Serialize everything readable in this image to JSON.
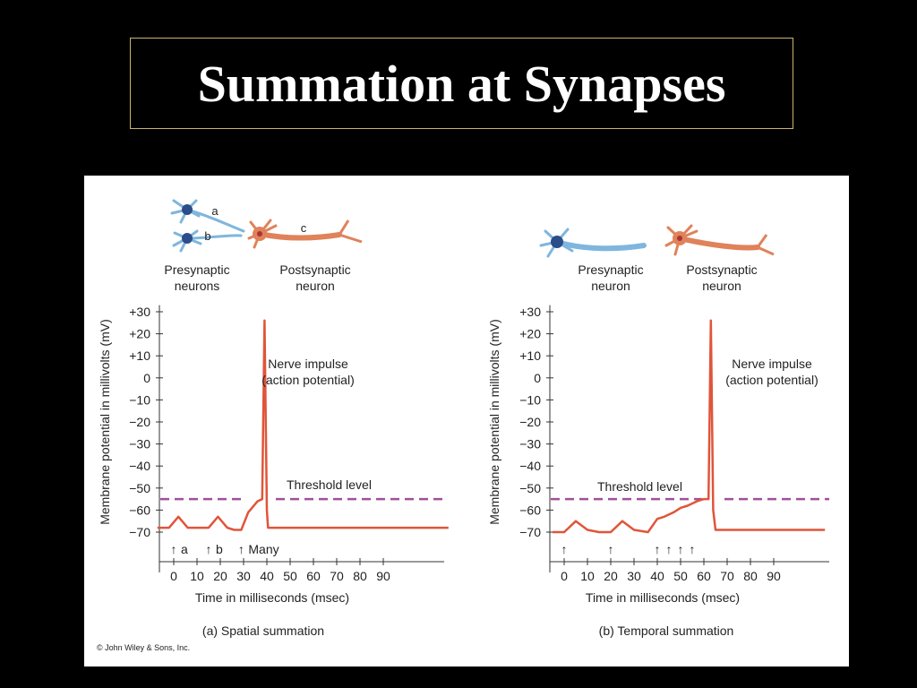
{
  "slide": {
    "title": "Summation at Synapses",
    "copyright": "© John Wiley & Sons, Inc."
  },
  "colors": {
    "trace": "#e0553a",
    "threshold": "#a0509a",
    "presynaptic": "#7fb6dd",
    "postsynaptic": "#e0825a"
  },
  "chart_data": [
    {
      "type": "line",
      "caption": "(a) Spatial summation",
      "xlabel": "Time in milliseconds (msec)",
      "ylabel": "Membrane potential in millivolts (mV)",
      "x_ticks": [
        0,
        10,
        20,
        30,
        40,
        50,
        60,
        70,
        80,
        90
      ],
      "y_ticks": [
        30,
        20,
        10,
        0,
        -10,
        -20,
        -30,
        -40,
        -50,
        -60,
        -70
      ],
      "y_tick_labels": [
        "+30",
        "+20",
        "+10",
        "0",
        "−10",
        "−20",
        "−30",
        "−40",
        "−50",
        "−60",
        "−70"
      ],
      "threshold": -55,
      "threshold_label": "Threshold level",
      "annotation": [
        "Nerve impulse",
        "(action potential)"
      ],
      "stimuli": [
        {
          "x": 0,
          "label": "a"
        },
        {
          "x": 15,
          "label": "b"
        },
        {
          "x": 29,
          "label": "Many"
        }
      ],
      "diagram_labels": {
        "pre": [
          "Presynaptic",
          "neurons"
        ],
        "post": [
          "Postsynaptic",
          "neuron"
        ],
        "axons": [
          "a",
          "b",
          "c"
        ]
      },
      "series": [
        {
          "x": [
            -7,
            -2,
            2,
            6,
            10,
            15,
            19,
            23,
            26,
            29,
            32,
            36,
            38,
            39,
            40,
            40.5,
            42,
            60,
            118
          ],
          "y": [
            -68,
            -68,
            -63,
            -68,
            -68,
            -68,
            -63,
            -68,
            -69,
            -69,
            -61,
            -56,
            -55,
            26,
            -60,
            -68,
            -68,
            -68,
            -68
          ]
        }
      ]
    },
    {
      "type": "line",
      "caption": "(b) Temporal summation",
      "xlabel": "Time in milliseconds (msec)",
      "ylabel": "Membrane potential in millivolts (mV)",
      "x_ticks": [
        0,
        10,
        20,
        30,
        40,
        50,
        60,
        70,
        80,
        90
      ],
      "y_ticks": [
        30,
        20,
        10,
        0,
        -10,
        -20,
        -30,
        -40,
        -50,
        -60,
        -70
      ],
      "y_tick_labels": [
        "+30",
        "+20",
        "+10",
        "0",
        "−10",
        "−20",
        "−30",
        "−40",
        "−50",
        "−60",
        "−70"
      ],
      "threshold": -55,
      "threshold_label": "Threshold level",
      "annotation": [
        "Nerve impulse",
        "(action potential)"
      ],
      "stimuli": [
        {
          "x": 0,
          "label": ""
        },
        {
          "x": 20,
          "label": ""
        },
        {
          "x": 40,
          "label": ""
        },
        {
          "x": 45,
          "label": ""
        },
        {
          "x": 50,
          "label": ""
        },
        {
          "x": 55,
          "label": ""
        }
      ],
      "diagram_labels": {
        "pre": [
          "Presynaptic",
          "neuron"
        ],
        "post": [
          "Postsynaptic",
          "neuron"
        ],
        "axons": []
      },
      "series": [
        {
          "x": [
            -5,
            0,
            5,
            10,
            15,
            20,
            25,
            30,
            36,
            40,
            43,
            47,
            50,
            53,
            57,
            60,
            62,
            63,
            64,
            65,
            70,
            90,
            112
          ],
          "y": [
            -70,
            -70,
            -65,
            -69,
            -70,
            -70,
            -65,
            -69,
            -70,
            -64,
            -63,
            -61,
            -59,
            -58,
            -56,
            -55,
            -55,
            26,
            -60,
            -69,
            -69,
            -69,
            -69
          ]
        }
      ]
    }
  ]
}
